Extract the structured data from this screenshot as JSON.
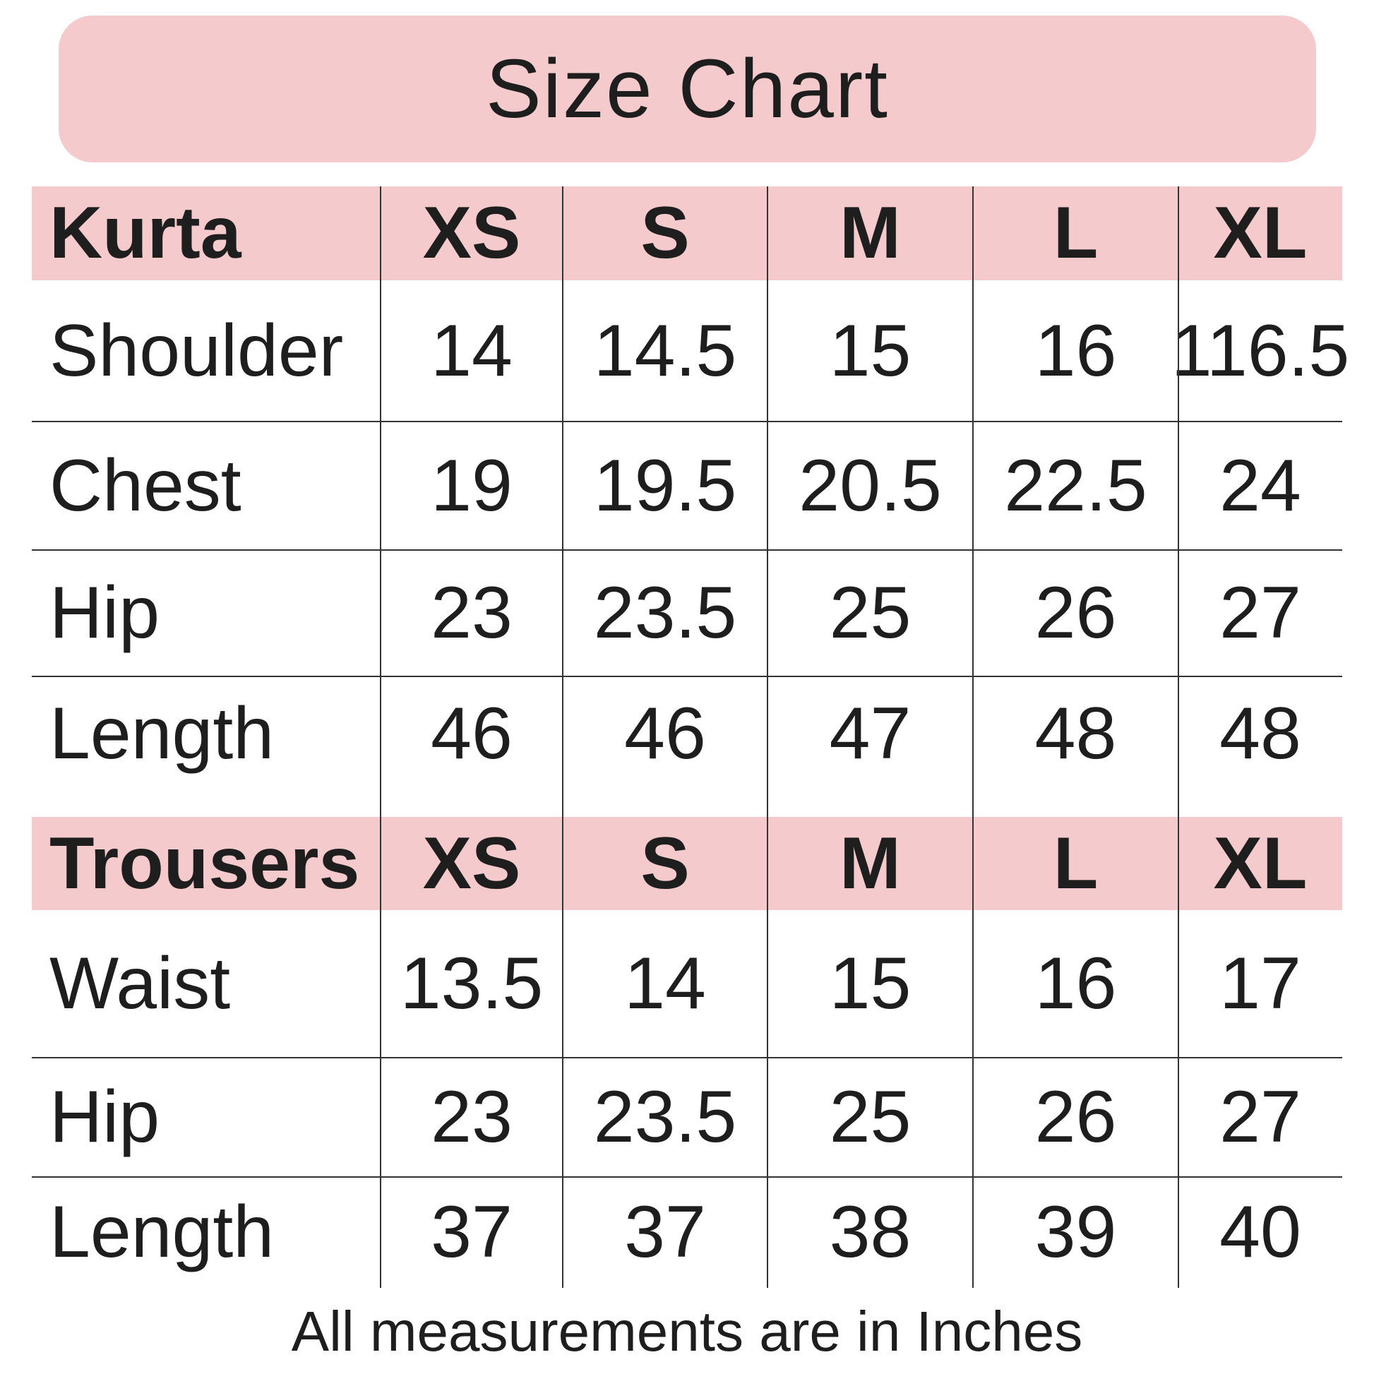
{
  "title": "Size Chart",
  "colors": {
    "header_bg": "#f4cacd",
    "text": "#1e1e1e",
    "lines": "#333333"
  },
  "sections": [
    {
      "name": "Kurta",
      "sizes": [
        "XS",
        "S",
        "M",
        "L",
        "XL"
      ],
      "rows": [
        {
          "label": "Shoulder",
          "values": [
            "14",
            "14.5",
            "15",
            "16",
            "116.5"
          ]
        },
        {
          "label": "Chest",
          "values": [
            "19",
            "19.5",
            "20.5",
            "22.5",
            "24"
          ]
        },
        {
          "label": "Hip",
          "values": [
            "23",
            "23.5",
            "25",
            "26",
            "27"
          ]
        },
        {
          "label": "Length",
          "values": [
            "46",
            "46",
            "47",
            "48",
            "48"
          ]
        }
      ]
    },
    {
      "name": "Trousers",
      "sizes": [
        "XS",
        "S",
        "M",
        "L",
        "XL"
      ],
      "rows": [
        {
          "label": "Waist",
          "values": [
            "13.5",
            "14",
            "15",
            "16",
            "17"
          ]
        },
        {
          "label": "Hip",
          "values": [
            "23",
            "23.5",
            "25",
            "26",
            "27"
          ]
        },
        {
          "label": "Length",
          "values": [
            "37",
            "37",
            "38",
            "39",
            "40"
          ]
        }
      ]
    }
  ],
  "footer": "All measurements are in Inches"
}
